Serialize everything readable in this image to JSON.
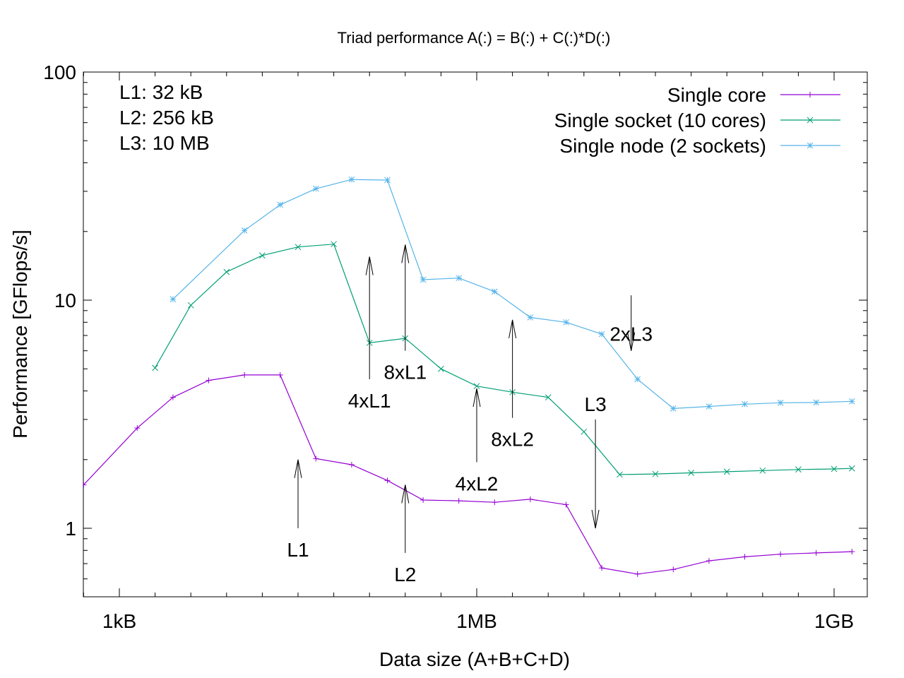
{
  "chart_data": {
    "type": "line",
    "title": "Triad performance A(:) = B(:) + C(:)*D(:)",
    "xlabel": "Data size (A+B+C+D)",
    "ylabel": "Performance [GFlops/s]",
    "x_scale": "log2",
    "y_scale": "log",
    "ylim": [
      0.5,
      100
    ],
    "y_ticks": [
      {
        "value": 1,
        "label": "1"
      },
      {
        "value": 10,
        "label": "10"
      },
      {
        "value": 100,
        "label": "100"
      }
    ],
    "x_ticks": [
      {
        "value_kb": 1024,
        "label": "1kB"
      },
      {
        "value_kb": 1048576,
        "label": "1MB"
      },
      {
        "value_kb": 1073741824,
        "label": "1GB"
      }
    ],
    "legend_position": "top-right",
    "cache_notes": [
      "L1: 32 kB",
      "L2: 256 kB",
      "L3: 10 MB"
    ],
    "series": [
      {
        "name": "Single core",
        "color": "#9400d3",
        "marker": "plus",
        "points": [
          {
            "x": 512,
            "y": 1.55
          },
          {
            "x": 1448,
            "y": 2.75
          },
          {
            "x": 2896,
            "y": 3.75
          },
          {
            "x": 5792,
            "y": 4.45
          },
          {
            "x": 11585,
            "y": 4.7
          },
          {
            "x": 23170,
            "y": 4.7
          },
          {
            "x": 46341,
            "y": 2.02
          },
          {
            "x": 92682,
            "y": 1.9
          },
          {
            "x": 185364,
            "y": 1.62
          },
          {
            "x": 370728,
            "y": 1.33
          },
          {
            "x": 741455,
            "y": 1.32
          },
          {
            "x": 1482910,
            "y": 1.3
          },
          {
            "x": 2965821,
            "y": 1.34
          },
          {
            "x": 5931642,
            "y": 1.27
          },
          {
            "x": 11863283,
            "y": 0.67
          },
          {
            "x": 23726566,
            "y": 0.63
          },
          {
            "x": 47453132,
            "y": 0.66
          },
          {
            "x": 94906265,
            "y": 0.72
          },
          {
            "x": 189812531,
            "y": 0.75
          },
          {
            "x": 379625062,
            "y": 0.77
          },
          {
            "x": 759250125,
            "y": 0.78
          },
          {
            "x": 1518500250,
            "y": 0.79
          }
        ]
      },
      {
        "name": "Single socket (10 cores)",
        "color": "#009e73",
        "marker": "cross",
        "points": [
          {
            "x": 2048,
            "y": 5.05
          },
          {
            "x": 4096,
            "y": 9.5
          },
          {
            "x": 8192,
            "y": 13.3
          },
          {
            "x": 16384,
            "y": 15.7
          },
          {
            "x": 32768,
            "y": 17.1
          },
          {
            "x": 65536,
            "y": 17.6
          },
          {
            "x": 131072,
            "y": 6.5
          },
          {
            "x": 262144,
            "y": 6.8
          },
          {
            "x": 524288,
            "y": 5.0
          },
          {
            "x": 1048576,
            "y": 4.2
          },
          {
            "x": 2097152,
            "y": 3.95
          },
          {
            "x": 4194304,
            "y": 3.75
          },
          {
            "x": 8388608,
            "y": 2.65
          },
          {
            "x": 16777216,
            "y": 1.72
          },
          {
            "x": 33554432,
            "y": 1.73
          },
          {
            "x": 67108864,
            "y": 1.75
          },
          {
            "x": 134217728,
            "y": 1.77
          },
          {
            "x": 268435456,
            "y": 1.79
          },
          {
            "x": 536870912,
            "y": 1.81
          },
          {
            "x": 1073741824,
            "y": 1.82
          },
          {
            "x": 1518500250,
            "y": 1.83
          }
        ]
      },
      {
        "name": "Single node (2 sockets)",
        "color": "#56b4e9",
        "marker": "star",
        "points": [
          {
            "x": 2896,
            "y": 10.1
          },
          {
            "x": 11585,
            "y": 20.2
          },
          {
            "x": 23170,
            "y": 26.2
          },
          {
            "x": 46341,
            "y": 30.8
          },
          {
            "x": 92682,
            "y": 33.8
          },
          {
            "x": 185364,
            "y": 33.6
          },
          {
            "x": 370728,
            "y": 12.3
          },
          {
            "x": 741455,
            "y": 12.5
          },
          {
            "x": 1482910,
            "y": 10.9
          },
          {
            "x": 2965821,
            "y": 8.4
          },
          {
            "x": 5931642,
            "y": 8.0
          },
          {
            "x": 11863283,
            "y": 7.1
          },
          {
            "x": 23726566,
            "y": 4.5
          },
          {
            "x": 47453132,
            "y": 3.35
          },
          {
            "x": 94906265,
            "y": 3.42
          },
          {
            "x": 189812531,
            "y": 3.5
          },
          {
            "x": 379625062,
            "y": 3.55
          },
          {
            "x": 759250125,
            "y": 3.56
          },
          {
            "x": 1518500250,
            "y": 3.6
          }
        ]
      }
    ],
    "annotations": [
      {
        "label": "L1",
        "x": 32768,
        "y_tail": 1.0,
        "y_head": 2.0,
        "direction": "up"
      },
      {
        "label": "L2",
        "x": 262144,
        "y_tail": 0.78,
        "y_head": 1.55,
        "direction": "up"
      },
      {
        "label": "L3",
        "x": 10485760,
        "y_tail": 3.0,
        "y_head": 1.0,
        "direction": "down"
      },
      {
        "label": "4xL1",
        "x": 131072,
        "y_tail": 4.5,
        "y_head": 15.5,
        "direction": "up"
      },
      {
        "label": "8xL1",
        "x": 262144,
        "y_tail": 6.0,
        "y_head": 17.5,
        "direction": "up"
      },
      {
        "label": "4xL2",
        "x": 1048576,
        "y_tail": 1.95,
        "y_head": 4.1,
        "direction": "up"
      },
      {
        "label": "8xL2",
        "x": 2097152,
        "y_tail": 3.05,
        "y_head": 8.2,
        "direction": "up"
      },
      {
        "label": "2xL3",
        "x": 20971520,
        "y_tail": 10.5,
        "y_head": 6.0,
        "direction": "down"
      }
    ]
  }
}
